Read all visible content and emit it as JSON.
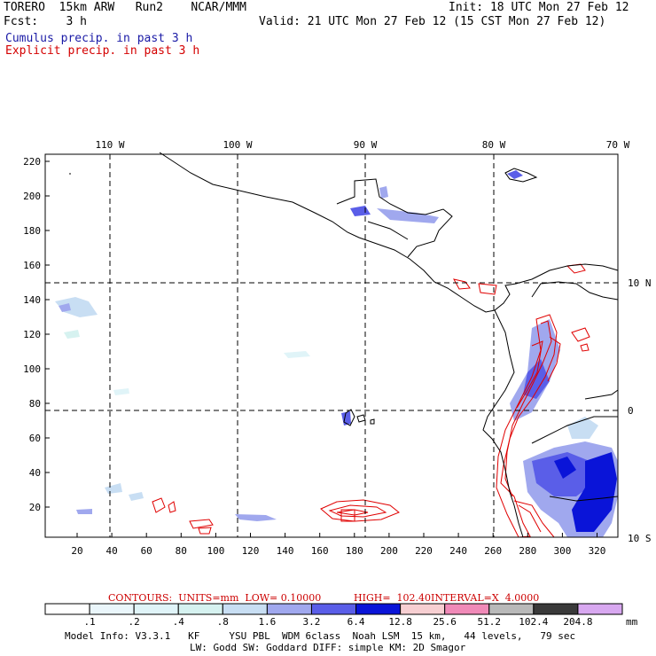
{
  "header": {
    "model": "TORERO  15km ARW   Run2    NCAR/MMM",
    "init": "Init: 18 UTC Mon 27 Feb 12",
    "fcst": "Fcst:    3 h",
    "valid": "Valid: 21 UTC Mon 27 Feb 12 (15 CST Mon 27 Feb 12)",
    "cumulus": "Cumulus precip. in past 3 h",
    "explicit": "Explicit precip. in past 3 h",
    "cumulus_color": "#1a1aa6",
    "explicit_color": "#d40000"
  },
  "map": {
    "lon_labels": [
      "110 W",
      "100 W",
      "90 W",
      "80 W",
      "70 W"
    ],
    "lat_labels": [
      "10 N",
      "0",
      "10 S"
    ],
    "x_ticks": [
      "20",
      "40",
      "60",
      "80",
      "100",
      "120",
      "140",
      "160",
      "180",
      "200",
      "220",
      "240",
      "260",
      "280",
      "300",
      "320"
    ],
    "y_ticks": [
      "20",
      "40",
      "60",
      "80",
      "100",
      "120",
      "140",
      "160",
      "180",
      "200",
      "220"
    ]
  },
  "contours": {
    "units": "CONTOURS:  UNITS=mm  LOW= 0.10000",
    "high": "HIGH=  102.40",
    "interval": "INTERVAL=X  4.0000"
  },
  "colorbar": {
    "labels": [
      ".1",
      ".2",
      ".4",
      ".8",
      "1.6",
      "3.2",
      "6.4",
      "12.8",
      "25.6",
      "51.2",
      "102.4",
      "204.8"
    ],
    "unit": "mm",
    "colors": [
      "#ffffff",
      "#eaf6fb",
      "#e0f4f8",
      "#d6f2f0",
      "#c8def3",
      "#a0a8ee",
      "#5a5ee8",
      "#0a14d8",
      "#f7cfd2",
      "#f08ab8",
      "#b9b9b9",
      "#3a3a3a",
      "#d8a8f0"
    ]
  },
  "footer": {
    "line1": "Model Info: V3.3.1   KF     YSU PBL  WDM 6class  Noah LSM  15 km,   44 levels,   79 sec",
    "line2": "LW: Godd SW: Goddard DIFF: simple KM: 2D Smagor"
  }
}
